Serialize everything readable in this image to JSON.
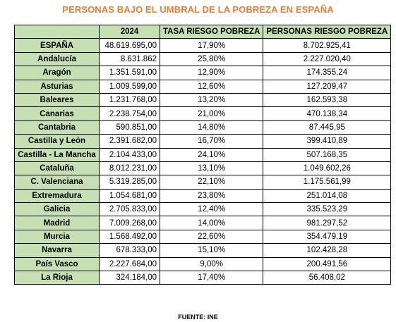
{
  "title": "PERSONAS BAJO EL UMBRAL DE LA POBREZA EN ESPAÑA",
  "columns": [
    "",
    "2024",
    "TASA RIESGO POBREZA",
    "PERSONAS RIESGO POBREZA"
  ],
  "rows": [
    {
      "region": "ESPAÑA",
      "population": "48.619.695,00",
      "rate": "17,90%",
      "people": "8.702.925,41"
    },
    {
      "region": "Andalucía",
      "population": "8.631.862",
      "rate": "25,80%",
      "people": "2.227.020,40"
    },
    {
      "region": "Aragón",
      "population": "1.351.591,00",
      "rate": "12,90%",
      "people": "174.355,24"
    },
    {
      "region": "Asturias",
      "population": "1.009.599,00",
      "rate": "12,60%",
      "people": "127.209,47"
    },
    {
      "region": "Baleares",
      "population": "1.231.768,00",
      "rate": "13,20%",
      "people": "162.593,38"
    },
    {
      "region": "Canarias",
      "population": "2.238.754,00",
      "rate": "21,00%",
      "people": "470.138,34"
    },
    {
      "region": "Cantabria",
      "population": "590.851,00",
      "rate": "14,80%",
      "people": "87.445,95"
    },
    {
      "region": "Castilla y León",
      "population": "2.391.682,00",
      "rate": "16,70%",
      "people": "399.410,89"
    },
    {
      "region": "Castilla - La Mancha",
      "population": "2.104.433,00",
      "rate": "24,10%",
      "people": "507.168,35"
    },
    {
      "region": "Cataluña",
      "population": "8.012.231,00",
      "rate": "13,10%",
      "people": "1.049.602,26"
    },
    {
      "region": "C. Valenciana",
      "population": "5.319.285,00",
      "rate": "22,10%",
      "people": "1.175.561,99"
    },
    {
      "region": "Extremadura",
      "population": "1.054.681,00",
      "rate": "23,80%",
      "people": "251.014,08"
    },
    {
      "region": "Galicia",
      "population": "2.705.833,00",
      "rate": "12,40%",
      "people": "335.523,29"
    },
    {
      "region": "Madrid",
      "population": "7.009.268,00",
      "rate": "14,00%",
      "people": "981.297,52"
    },
    {
      "region": "Murcia",
      "population": "1.568.492,00",
      "rate": "22,60%",
      "people": "354.479,19"
    },
    {
      "region": "Navarra",
      "population": "678.333,00",
      "rate": "15,10%",
      "people": "102.428,28"
    },
    {
      "region": "País Vasco",
      "population": "2.227.684,00",
      "rate": "9,00%",
      "people": "200.491,56"
    },
    {
      "region": "La Rioja",
      "population": "324.184,00",
      "rate": "17,40%",
      "people": "56.408,02"
    }
  ],
  "source": "FUENTE: INE",
  "colors": {
    "title": "#ED7D31",
    "header_fill": "#C6E0B4"
  }
}
